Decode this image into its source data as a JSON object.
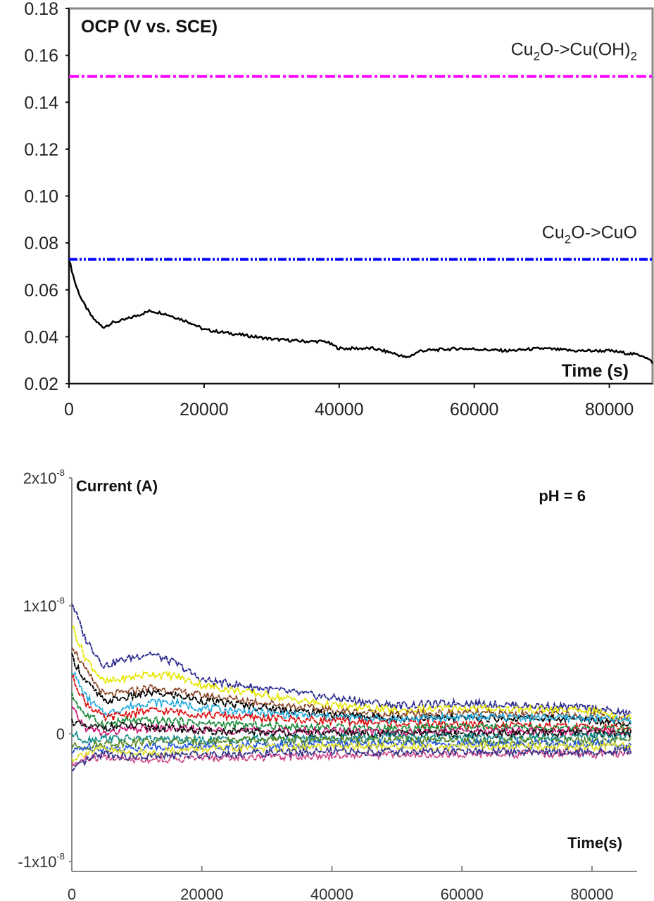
{
  "chart_data": [
    {
      "type": "line",
      "title": "OCP (V vs. SCE)",
      "xlabel": "Time (s)",
      "xlim": [
        0,
        86400
      ],
      "ylim": [
        0.02,
        0.18
      ],
      "xticks": [
        "0",
        "20000",
        "40000",
        "60000",
        "80000"
      ],
      "xtick_values": [
        0,
        20000,
        40000,
        60000,
        80000
      ],
      "yticks": [
        "0.02",
        "0.04",
        "0.06",
        "0.08",
        "0.10",
        "0.12",
        "0.14",
        "0.16",
        "0.18"
      ],
      "ytick_values": [
        0.02,
        0.04,
        0.06,
        0.08,
        0.1,
        0.12,
        0.14,
        0.16,
        0.18
      ],
      "series": [
        {
          "color": "#000000",
          "x": [
            0,
            1000,
            2000,
            3500,
            5000,
            6500,
            8000,
            10000,
            12000,
            14000,
            16000,
            18000,
            20000,
            25000,
            30000,
            35000,
            38000,
            40000,
            45000,
            48000,
            50000,
            52000,
            58000,
            65000,
            70000,
            75000,
            80000,
            85000,
            86400
          ],
          "y": [
            0.073,
            0.062,
            0.055,
            0.048,
            0.044,
            0.046,
            0.047,
            0.049,
            0.051,
            0.05,
            0.048,
            0.046,
            0.043,
            0.041,
            0.039,
            0.038,
            0.038,
            0.035,
            0.035,
            0.033,
            0.031,
            0.034,
            0.035,
            0.034,
            0.035,
            0.034,
            0.034,
            0.032,
            0.029
          ]
        }
      ],
      "reference_lines": [
        {
          "y": 0.151,
          "color": "#ff00ff",
          "style": "dash-dot",
          "label": {
            "main": "Cu",
            "sub1": "2",
            "mid": "O->Cu(OH)",
            "sub2": "2"
          }
        },
        {
          "y": 0.073,
          "color": "#0000ff",
          "style": "dash-dot-dot",
          "label": {
            "main": "Cu",
            "sub1": "2",
            "mid": "O->CuO",
            "sub2": ""
          }
        }
      ]
    },
    {
      "type": "line",
      "ylabel": "Current (A)",
      "annotation": "pH = 6",
      "xlabel": "Time(s)",
      "xlim": [
        0,
        86400
      ],
      "ylim": [
        -1e-08,
        2e-08
      ],
      "xticks": [
        "0",
        "20000",
        "40000",
        "60000",
        "80000"
      ],
      "xtick_values": [
        0,
        20000,
        40000,
        60000,
        80000
      ],
      "yticks": [
        {
          "base": "-1x10",
          "exp": "-8",
          "value": -1e-08
        },
        {
          "base": "0",
          "exp": "",
          "value": 0
        },
        {
          "base": "1x10",
          "exp": "-8",
          "value": 1e-08
        },
        {
          "base": "2x10",
          "exp": "-8",
          "value": 2e-08
        }
      ],
      "x": [
        0,
        2000,
        5000,
        8000,
        12000,
        16000,
        20000,
        30000,
        40000,
        50000,
        60000,
        70000,
        80000,
        86000
      ],
      "series": [
        {
          "color": "#2b2b8f",
          "y": [
            1.03e-08,
            7.5e-09,
            5.3e-09,
            5.8e-09,
            6.3e-09,
            5.5e-09,
            4.2e-09,
            3.5e-09,
            2.8e-09,
            2.2e-09,
            2.4e-09,
            2.2e-09,
            2e-09,
            1.5e-09
          ]
        },
        {
          "color": "#e6e600",
          "y": [
            8.5e-09,
            6e-09,
            4e-09,
            4.3e-09,
            4.7e-09,
            4.5e-09,
            3.8e-09,
            3e-09,
            2.2e-09,
            1.8e-09,
            2e-09,
            1.9e-09,
            1.8e-09,
            1.2e-09
          ]
        },
        {
          "color": "#8b4a2b",
          "y": [
            7e-09,
            5e-09,
            3e-09,
            3.2e-09,
            3.6e-09,
            3.3e-09,
            3e-09,
            2.4e-09,
            1.8e-09,
            1.5e-09,
            1.6e-09,
            1.5e-09,
            1.4e-09,
            1e-09
          ]
        },
        {
          "color": "#000000",
          "y": [
            6e-09,
            4.2e-09,
            2.5e-09,
            2.8e-09,
            3.2e-09,
            3e-09,
            2.6e-09,
            2e-09,
            1.5e-09,
            1.2e-09,
            1.2e-09,
            1.2e-09,
            1.1e-09,
            8e-10
          ]
        },
        {
          "color": "#22aadd",
          "y": [
            5e-09,
            3e-09,
            1.5e-09,
            2e-09,
            2.5e-09,
            2.4e-09,
            2e-09,
            1.6e-09,
            1.3e-09,
            1.1e-09,
            1.3e-09,
            1.3e-09,
            1.2e-09,
            1e-09
          ]
        },
        {
          "color": "#dd1111",
          "y": [
            4.5e-09,
            2.5e-09,
            1.2e-09,
            1.5e-09,
            1.8e-09,
            1.7e-09,
            1.5e-09,
            1.2e-09,
            1e-09,
            8e-10,
            7e-10,
            6e-10,
            5e-10,
            4e-10
          ]
        },
        {
          "color": "#1a8a3a",
          "y": [
            3e-09,
            1.5e-09,
            7e-10,
            1e-09,
            1e-09,
            1e-09,
            8e-10,
            6e-10,
            5e-10,
            4e-10,
            5e-10,
            4e-10,
            4e-10,
            3e-10
          ]
        },
        {
          "color": "#cc1177",
          "y": [
            2e-09,
            5e-10,
            0.0,
            3e-10,
            4e-10,
            4e-10,
            3e-10,
            2e-10,
            2e-10,
            1e-10,
            2e-10,
            2e-10,
            2e-10,
            1e-10
          ]
        },
        {
          "color": "#111111",
          "y": [
            1e-09,
            5e-10,
            5e-10,
            6e-10,
            5e-10,
            4e-10,
            2e-10,
            1e-10,
            0.0,
            0.0,
            0.0,
            0.0,
            0.0,
            0.0
          ]
        },
        {
          "color": "#118888",
          "y": [
            0.0,
            -5e-10,
            -3e-10,
            -4e-10,
            -4e-10,
            -5e-10,
            -5e-10,
            -4e-10,
            -3e-10,
            -2e-10,
            -3e-10,
            -3e-10,
            -2e-10,
            -2e-10
          ]
        },
        {
          "color": "#558822",
          "y": [
            -1e-09,
            -1e-09,
            -8e-10,
            -7e-10,
            -6e-10,
            -6e-10,
            -6e-10,
            -5e-10,
            -5e-10,
            -5e-10,
            -6e-10,
            -6e-10,
            -6e-10,
            -5e-10
          ]
        },
        {
          "color": "#2255dd",
          "y": [
            -1.5e-09,
            -1e-09,
            -1.2e-09,
            -1.2e-09,
            -1e-09,
            -1e-09,
            -1e-09,
            -9e-10,
            -8e-10,
            -8e-10,
            -8e-10,
            -8e-10,
            -8e-10,
            -8e-10
          ]
        },
        {
          "color": "#dddd22",
          "y": [
            -2e-09,
            -1.5e-09,
            -1.2e-09,
            -1.5e-09,
            -1.5e-09,
            -1.3e-09,
            -1.2e-09,
            -1.1e-09,
            -1e-09,
            -1e-09,
            -1e-09,
            -1e-09,
            -1e-09,
            -1e-09
          ]
        },
        {
          "color": "#cc4488",
          "y": [
            -2.5e-09,
            -2e-09,
            -1.8e-09,
            -2e-09,
            -2e-09,
            -2e-09,
            -1.9e-09,
            -1.8e-09,
            -1.7e-09,
            -1.6e-09,
            -1.6e-09,
            -1.6e-09,
            -1.6e-09,
            -1.5e-09
          ]
        },
        {
          "color": "#333388",
          "y": [
            -3e-09,
            -2.2e-09,
            -1.5e-09,
            -1.8e-09,
            -1.8e-09,
            -1.7e-09,
            -1.6e-09,
            -1.5e-09,
            -1.4e-09,
            -1.4e-09,
            -1.4e-09,
            -1.4e-09,
            -1.4e-09,
            -1.3e-09
          ]
        }
      ]
    }
  ]
}
